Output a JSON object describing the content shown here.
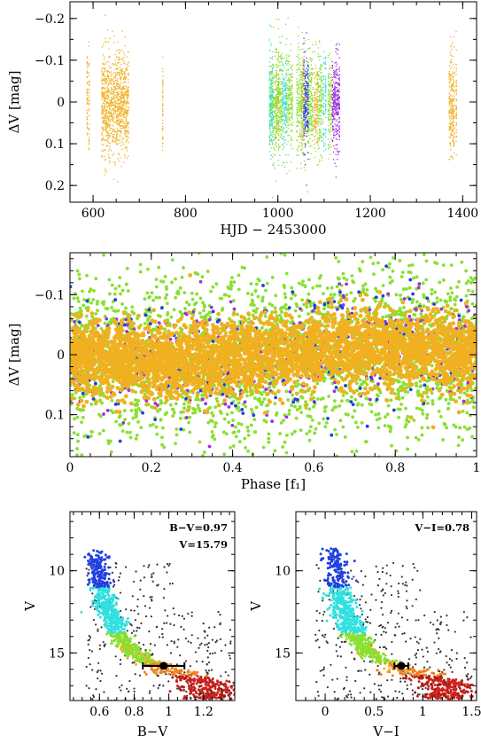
{
  "colors": {
    "orange": "#f0b020",
    "green": "#88e030",
    "cyan": "#30e0e0",
    "blue": "#2040e0",
    "purple": "#a030e0",
    "cmd_black": "#333333",
    "cmd_red": "#d02020",
    "cmd_darkred": "#902010",
    "cmd_orange": "#f08020"
  },
  "chart_data": [
    {
      "id": "light-curve-time",
      "type": "scatter",
      "xlabel": "HJD − 2453000",
      "ylabel": "ΔV [mag]",
      "xlim": [
        550,
        1430
      ],
      "ylim": [
        -0.24,
        0.24
      ],
      "y_inverted": true,
      "x_ticks": [
        "600",
        "800",
        "1000",
        "1200",
        "1400"
      ],
      "y_ticks": [
        "−0.2",
        "−0.1",
        "0",
        "0.1",
        "0.2"
      ],
      "series": [
        {
          "color": "orange",
          "segments": [
            [
              586,
              590
            ],
            [
              618,
              635
            ],
            [
              638,
              650
            ],
            [
              652,
              662
            ],
            [
              665,
              675
            ],
            [
              748,
              751
            ],
            [
              1370,
              1380
            ],
            [
              1384,
              1386
            ],
            [
              996,
              1000
            ],
            [
              1050,
              1058
            ],
            [
              1078,
              1084
            ]
          ]
        },
        {
          "color": "green",
          "segments": [
            [
              982,
              995
            ],
            [
              998,
              1008
            ],
            [
              1018,
              1030
            ],
            [
              1040,
              1052
            ],
            [
              1063,
              1074
            ],
            [
              1086,
              1094
            ],
            [
              1108,
              1114
            ]
          ]
        },
        {
          "color": "cyan",
          "segments": [
            [
              981,
              987
            ],
            [
              1010,
              1016
            ],
            [
              1098,
              1102
            ]
          ]
        },
        {
          "color": "blue",
          "segments": [
            [
              1055,
              1064
            ]
          ]
        },
        {
          "color": "purple",
          "segments": [
            [
              1117,
              1132
            ]
          ]
        }
      ]
    },
    {
      "id": "phase-diagram",
      "type": "scatter",
      "xlabel": "Phase [f₁]",
      "ylabel": "ΔV [mag]",
      "xlim": [
        0,
        1
      ],
      "ylim": [
        -0.17,
        0.17
      ],
      "y_inverted": true,
      "x_ticks": [
        "0",
        "0.2",
        "0.4",
        "0.6",
        "0.8",
        "1"
      ],
      "y_ticks": [
        "−0.1",
        "0",
        "0.1"
      ],
      "series": [
        {
          "color": "green",
          "n": 2600,
          "sigma": 0.07,
          "amplitude": 0.012
        },
        {
          "color": "purple",
          "n": 380,
          "sigma": 0.045,
          "amplitude": 0.012
        },
        {
          "color": "blue",
          "n": 260,
          "sigma": 0.05,
          "amplitude": 0.012
        },
        {
          "color": "orange",
          "n": 3800,
          "sigma": 0.03,
          "amplitude": 0.012
        }
      ]
    },
    {
      "id": "cmd-bv",
      "type": "scatter",
      "xlabel": "B−V",
      "ylabel": "V",
      "xlim": [
        0.43,
        1.38
      ],
      "ylim": [
        17.9,
        6.4
      ],
      "x_ticks": [
        "0.6",
        "0.8",
        "1",
        "1.2"
      ],
      "y_ticks": [
        "10",
        "15"
      ],
      "annotations": [
        "B−V=0.97",
        "V=15.79"
      ],
      "target": {
        "x": 0.97,
        "y": 15.79,
        "xerr": 0.12
      },
      "sequence_x": [
        0.58,
        0.62,
        0.7,
        0.8,
        0.92,
        1.05,
        1.22
      ],
      "sequence_y": [
        9.0,
        11.5,
        13.8,
        15.0,
        15.7,
        16.3,
        16.8
      ]
    },
    {
      "id": "cmd-vi",
      "type": "scatter",
      "xlabel": "V−I",
      "ylabel": "V",
      "xlim": [
        -0.3,
        1.55
      ],
      "ylim": [
        17.9,
        6.4
      ],
      "x_ticks": [
        "0",
        "0.5",
        "1",
        "1.5"
      ],
      "y_ticks": [
        "10",
        "15"
      ],
      "annotations": [
        "V−I=0.78"
      ],
      "target": {
        "x": 0.78,
        "y": 15.79,
        "xerr": 0.07
      },
      "sequence_x": [
        0.1,
        0.15,
        0.28,
        0.45,
        0.68,
        0.95,
        1.25
      ],
      "sequence_y": [
        9.0,
        11.5,
        13.8,
        15.0,
        15.7,
        16.3,
        16.8
      ]
    }
  ]
}
